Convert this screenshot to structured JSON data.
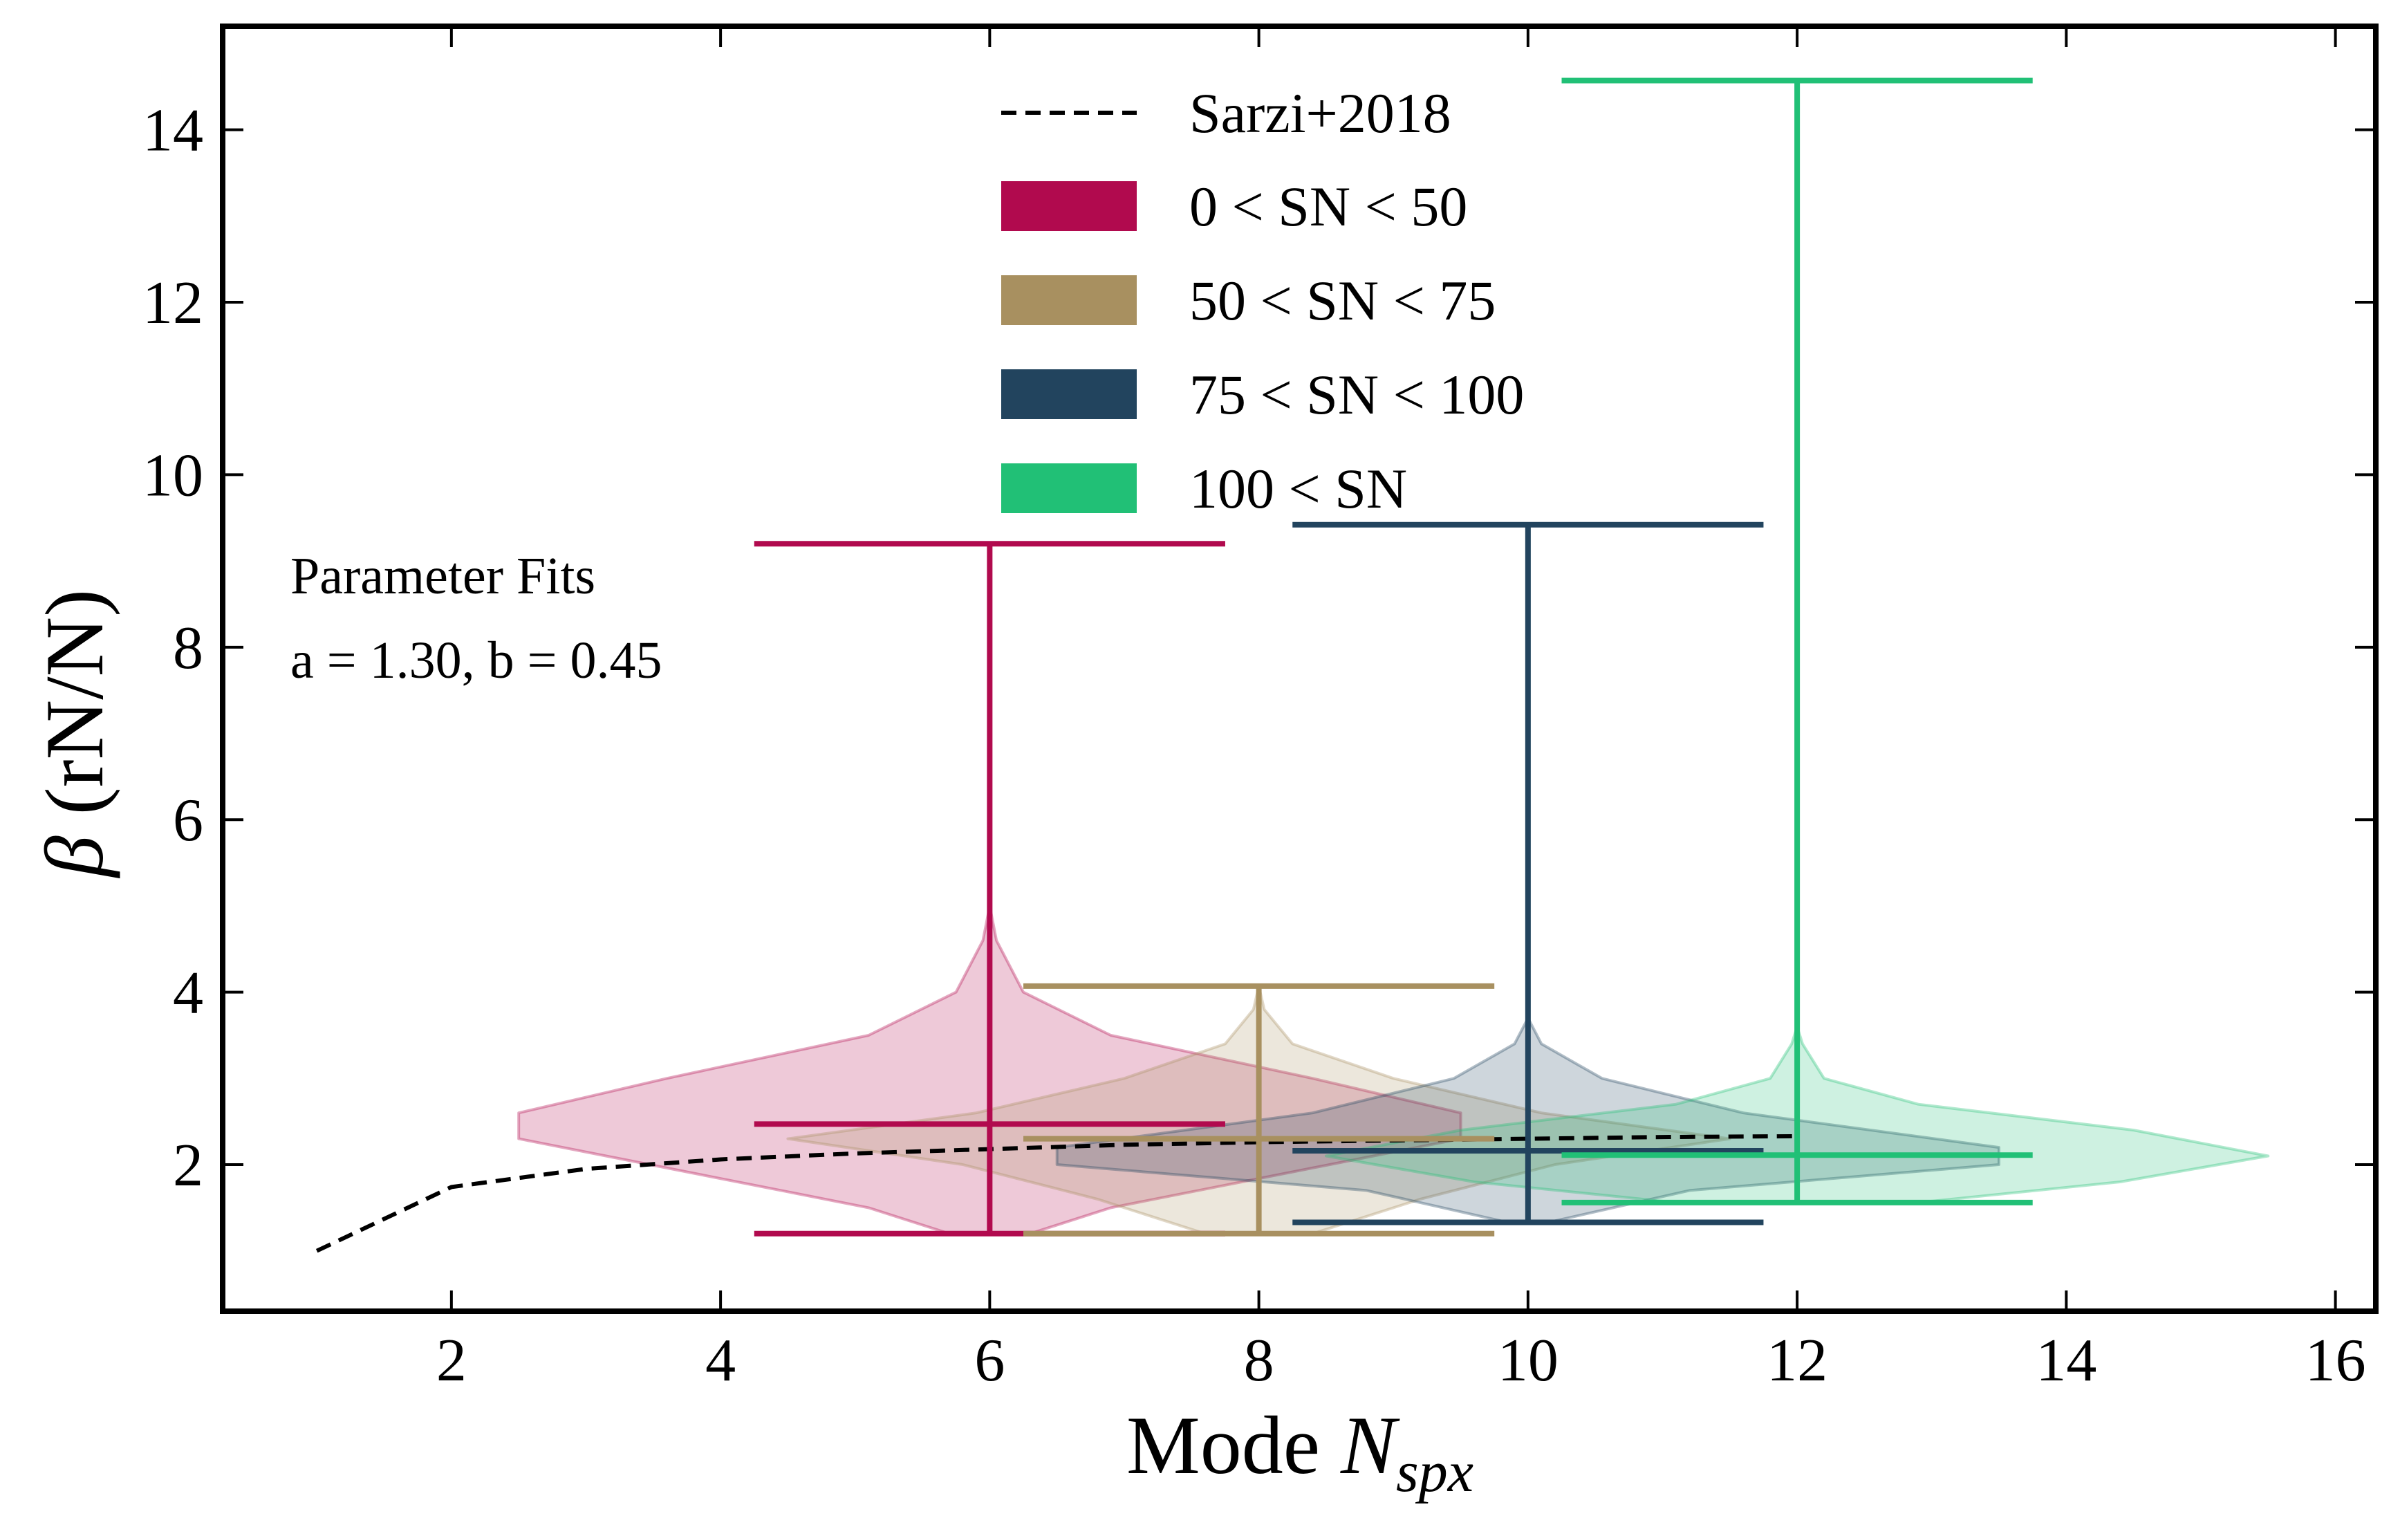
{
  "chart_data": {
    "type": "violin",
    "xlabel_main": "Mode ",
    "xlabel_sym": "N",
    "xlabel_sub": "spx",
    "ylabel_sym": "β",
    "ylabel_rest": " (rN/N)",
    "xlim": [
      0.3,
      16.3
    ],
    "ylim": [
      0.3,
      15.2
    ],
    "xticks": [
      2,
      4,
      6,
      8,
      10,
      12,
      14,
      16
    ],
    "yticks": [
      2,
      4,
      6,
      8,
      10,
      12,
      14
    ],
    "annotation": [
      "Parameter Fits",
      "a = 1.30, b = 0.45"
    ],
    "reference_line": {
      "name": "Sarzi+2018",
      "color": "#000000",
      "x": [
        1,
        2,
        3,
        4,
        5,
        6,
        7,
        8,
        9,
        10,
        11,
        12
      ],
      "y": [
        1.0,
        1.74,
        1.95,
        2.06,
        2.13,
        2.18,
        2.23,
        2.26,
        2.28,
        2.3,
        2.32,
        2.33
      ]
    },
    "series": [
      {
        "name": "0 < SN < 50",
        "color": "#b10a4e",
        "x": 6,
        "min": 1.2,
        "median": 2.47,
        "max": 9.2,
        "violin": [
          [
            1.2,
            0.3
          ],
          [
            1.5,
            0.9
          ],
          [
            1.9,
            2.2
          ],
          [
            2.3,
            3.5
          ],
          [
            2.6,
            3.5
          ],
          [
            3.0,
            2.4
          ],
          [
            3.5,
            0.9
          ],
          [
            4.0,
            0.25
          ],
          [
            4.6,
            0.05
          ],
          [
            5.0,
            0.0
          ]
        ]
      },
      {
        "name": "50 < SN < 75",
        "color": "#a89060",
        "x": 8,
        "min": 1.2,
        "median": 2.3,
        "max": 4.07,
        "violin": [
          [
            1.2,
            0.4
          ],
          [
            1.6,
            1.2
          ],
          [
            2.0,
            2.2
          ],
          [
            2.3,
            3.5
          ],
          [
            2.6,
            2.1
          ],
          [
            3.0,
            1.0
          ],
          [
            3.4,
            0.25
          ],
          [
            3.8,
            0.04
          ],
          [
            4.07,
            0.0
          ]
        ]
      },
      {
        "name": "75 < SN < 100",
        "color": "#22445e",
        "x": 10,
        "min": 1.33,
        "median": 2.16,
        "max": 9.42,
        "violin": [
          [
            1.33,
            0.15
          ],
          [
            1.7,
            1.2
          ],
          [
            2.0,
            3.5
          ],
          [
            2.2,
            3.5
          ],
          [
            2.6,
            1.6
          ],
          [
            3.0,
            0.55
          ],
          [
            3.4,
            0.1
          ],
          [
            3.7,
            0.0
          ]
        ]
      },
      {
        "name": "100 < SN",
        "color": "#21c076",
        "x": 12,
        "min": 1.56,
        "median": 2.11,
        "max": 14.57,
        "violin": [
          [
            1.56,
            0.9
          ],
          [
            1.8,
            2.4
          ],
          [
            2.1,
            3.5
          ],
          [
            2.4,
            2.5
          ],
          [
            2.7,
            0.9
          ],
          [
            3.0,
            0.2
          ],
          [
            3.4,
            0.04
          ],
          [
            3.6,
            0.0
          ]
        ]
      }
    ],
    "legend_position": "upper-center"
  }
}
